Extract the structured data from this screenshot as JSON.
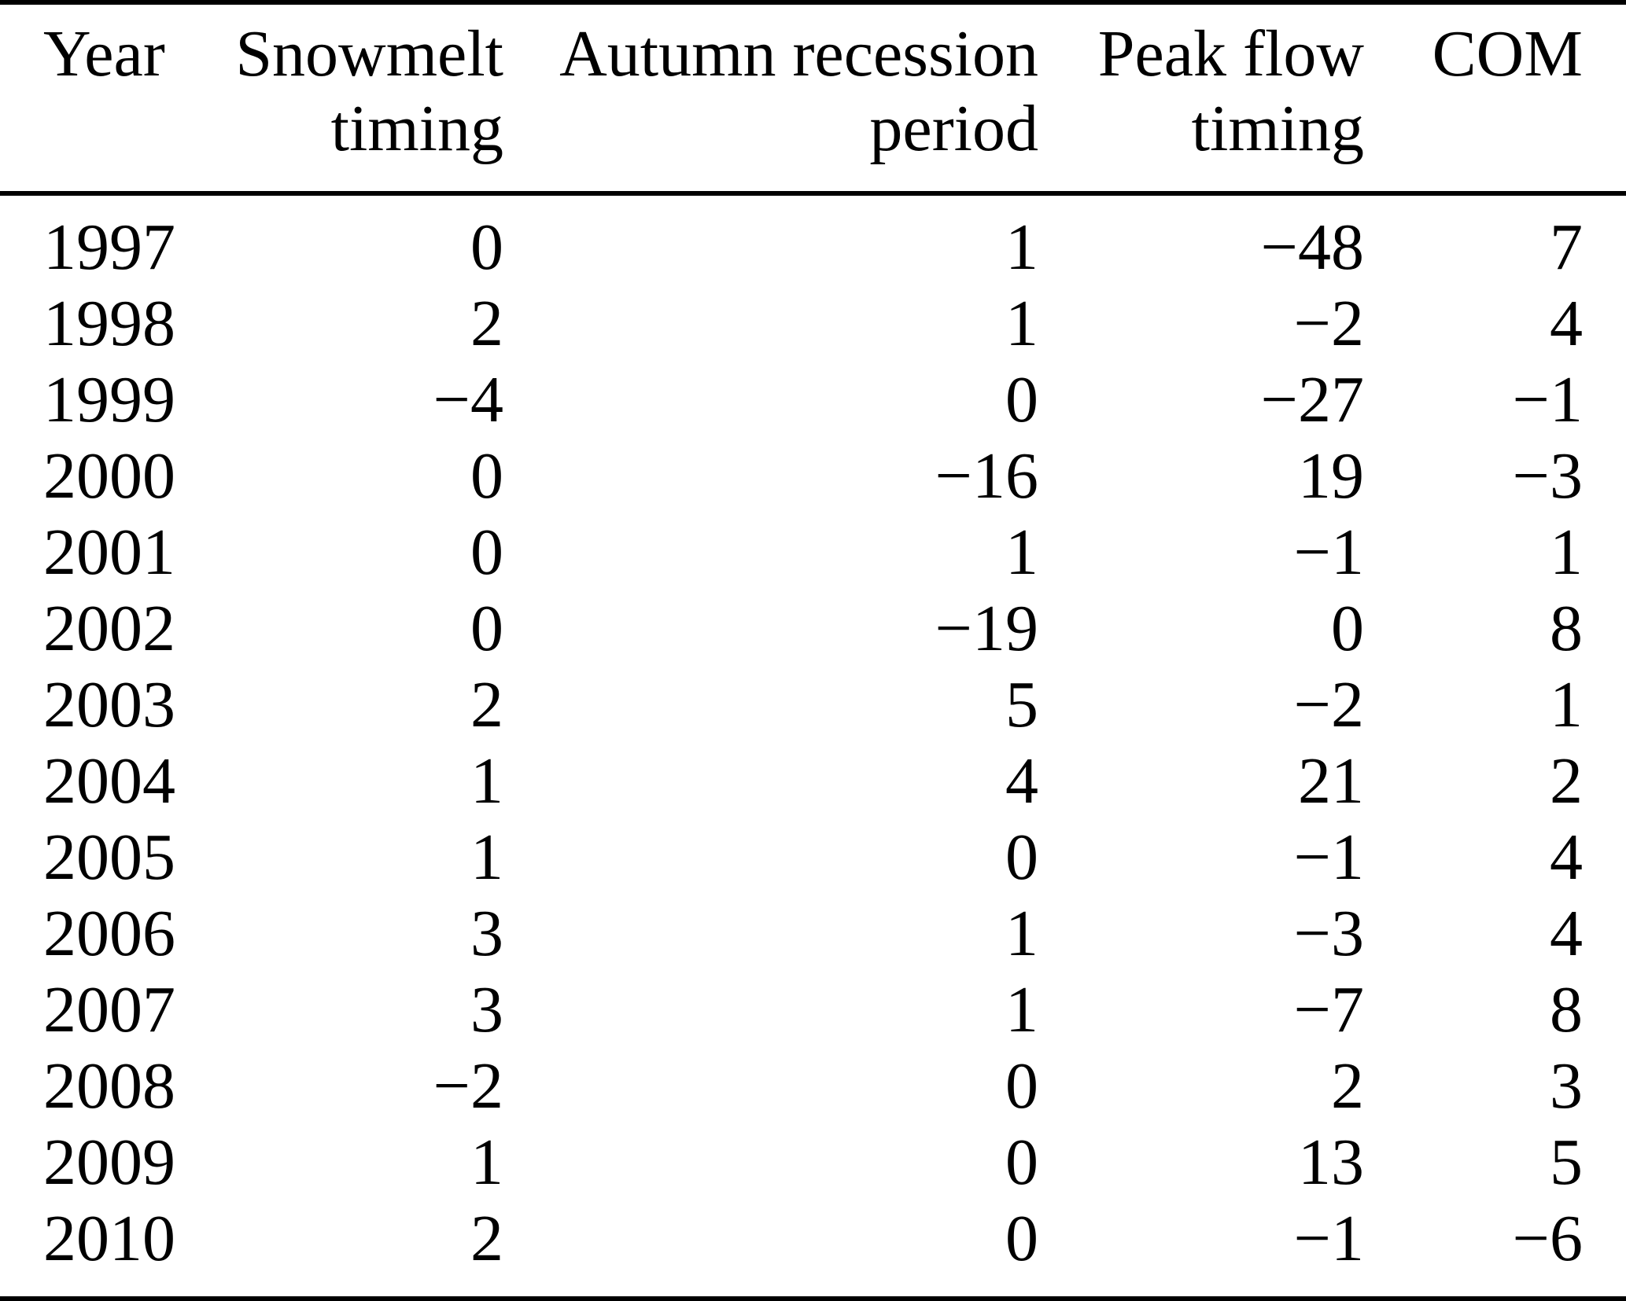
{
  "page": {
    "background_color": "#ffffff",
    "text_color": "#000000",
    "rule_color": "#000000"
  },
  "table": {
    "columns": [
      {
        "id": "year",
        "align": "left",
        "header_lines": [
          "Year"
        ]
      },
      {
        "id": "snowmelt",
        "align": "right",
        "header_lines": [
          "Snowmelt",
          "timing"
        ]
      },
      {
        "id": "autumn",
        "align": "right",
        "header_lines": [
          "Autumn recession",
          "period"
        ]
      },
      {
        "id": "peakflow",
        "align": "right",
        "header_lines": [
          "Peak flow",
          "timing"
        ]
      },
      {
        "id": "com",
        "align": "right",
        "header_lines": [
          "COM"
        ]
      }
    ],
    "rows": [
      {
        "year": "1997",
        "snowmelt": "0",
        "autumn": "1",
        "peakflow": "−48",
        "com": "7"
      },
      {
        "year": "1998",
        "snowmelt": "2",
        "autumn": "1",
        "peakflow": "−2",
        "com": "4"
      },
      {
        "year": "1999",
        "snowmelt": "−4",
        "autumn": "0",
        "peakflow": "−27",
        "com": "−1"
      },
      {
        "year": "2000",
        "snowmelt": "0",
        "autumn": "−16",
        "peakflow": "19",
        "com": "−3"
      },
      {
        "year": "2001",
        "snowmelt": "0",
        "autumn": "1",
        "peakflow": "−1",
        "com": "1"
      },
      {
        "year": "2002",
        "snowmelt": "0",
        "autumn": "−19",
        "peakflow": "0",
        "com": "8"
      },
      {
        "year": "2003",
        "snowmelt": "2",
        "autumn": "5",
        "peakflow": "−2",
        "com": "1"
      },
      {
        "year": "2004",
        "snowmelt": "1",
        "autumn": "4",
        "peakflow": "21",
        "com": "2"
      },
      {
        "year": "2005",
        "snowmelt": "1",
        "autumn": "0",
        "peakflow": "−1",
        "com": "4"
      },
      {
        "year": "2006",
        "snowmelt": "3",
        "autumn": "1",
        "peakflow": "−3",
        "com": "4"
      },
      {
        "year": "2007",
        "snowmelt": "3",
        "autumn": "1",
        "peakflow": "−7",
        "com": "8"
      },
      {
        "year": "2008",
        "snowmelt": "−2",
        "autumn": "0",
        "peakflow": "2",
        "com": "3"
      },
      {
        "year": "2009",
        "snowmelt": "1",
        "autumn": "0",
        "peakflow": "13",
        "com": "5"
      },
      {
        "year": "2010",
        "snowmelt": "2",
        "autumn": "0",
        "peakflow": "−1",
        "com": "−6"
      }
    ]
  }
}
